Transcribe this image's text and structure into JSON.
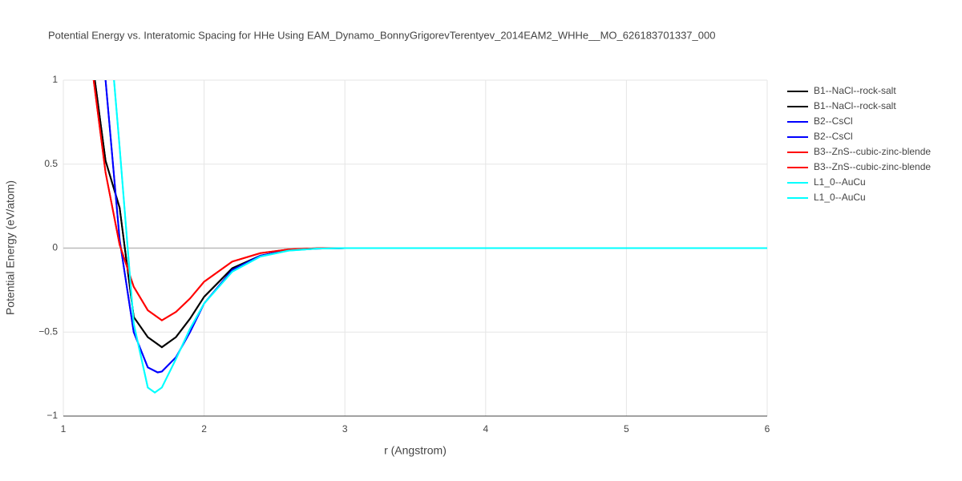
{
  "chart_data": {
    "type": "line",
    "title": "Potential Energy vs. Interatomic Spacing for HHe Using EAM_Dynamo_BonnyGrigorevTerentyev_2014EAM2_WHHe__MO_626183701337_000",
    "x_label": "r (Angstrom)",
    "y_label": "Potential Energy (eV/atom)",
    "xlim": [
      1,
      6
    ],
    "ylim": [
      -1,
      1
    ],
    "xticks": [
      1,
      2,
      3,
      4,
      5,
      6
    ],
    "yticks": [
      {
        "value": -1,
        "label": "−1"
      },
      {
        "value": -0.5,
        "label": "−0.5"
      },
      0,
      0.5,
      1
    ],
    "grid": true,
    "legend": "right",
    "series": [
      {
        "name": "B1--NaCl--rock-salt",
        "color": "#000000",
        "x": [
          1.2,
          1.3,
          1.4,
          1.5,
          1.6,
          1.7,
          1.8,
          1.9,
          2.0,
          2.2,
          2.4,
          2.6,
          2.8,
          3.0,
          4,
          5,
          6
        ],
        "values": [
          1.15,
          0.52,
          0.24,
          -0.41,
          -0.53,
          -0.59,
          -0.53,
          -0.42,
          -0.29,
          -0.12,
          -0.045,
          -0.012,
          -0.002,
          0,
          0,
          0,
          0
        ]
      },
      {
        "name": "B1--NaCl--rock-salt",
        "color": "#000000",
        "x": [
          1.2,
          1.3,
          1.4,
          1.5,
          1.6,
          1.7,
          1.8,
          1.9,
          2.0,
          2.2,
          2.4,
          2.6,
          2.8,
          3.0,
          4,
          5,
          6
        ],
        "values": [
          1.15,
          0.52,
          0.24,
          -0.41,
          -0.53,
          -0.59,
          -0.53,
          -0.42,
          -0.29,
          -0.12,
          -0.045,
          -0.012,
          -0.002,
          0,
          0,
          0,
          0
        ]
      },
      {
        "name": "B2--CsCl",
        "color": "#0000ff",
        "x": [
          1.28,
          1.3,
          1.4,
          1.5,
          1.6,
          1.67,
          1.7,
          1.8,
          1.9,
          2.0,
          2.2,
          2.4,
          2.6,
          2.8,
          3.0,
          4,
          5,
          6
        ],
        "values": [
          1.25,
          1.0,
          0.05,
          -0.5,
          -0.71,
          -0.74,
          -0.735,
          -0.65,
          -0.5,
          -0.33,
          -0.13,
          -0.045,
          -0.013,
          -0.003,
          0,
          0,
          0,
          0
        ]
      },
      {
        "name": "B2--CsCl",
        "color": "#0000ff",
        "x": [
          1.28,
          1.3,
          1.4,
          1.5,
          1.6,
          1.67,
          1.7,
          1.8,
          1.9,
          2.0,
          2.2,
          2.4,
          2.6,
          2.8,
          3.0,
          4,
          5,
          6
        ],
        "values": [
          1.25,
          1.0,
          0.05,
          -0.5,
          -0.71,
          -0.74,
          -0.735,
          -0.65,
          -0.5,
          -0.33,
          -0.13,
          -0.045,
          -0.013,
          -0.003,
          0,
          0,
          0,
          0
        ]
      },
      {
        "name": "B3--ZnS--cubic-zinc-blende",
        "color": "#ff0000",
        "x": [
          1.2,
          1.3,
          1.4,
          1.5,
          1.6,
          1.7,
          1.8,
          1.9,
          2.0,
          2.2,
          2.4,
          2.6,
          2.8,
          3.0,
          4,
          5,
          6
        ],
        "values": [
          1.1,
          0.45,
          0.02,
          -0.23,
          -0.37,
          -0.43,
          -0.38,
          -0.3,
          -0.2,
          -0.08,
          -0.03,
          -0.008,
          -0.001,
          0,
          0,
          0,
          0
        ]
      },
      {
        "name": "B3--ZnS--cubic-zinc-blende",
        "color": "#ff0000",
        "x": [
          1.2,
          1.3,
          1.4,
          1.5,
          1.6,
          1.7,
          1.8,
          1.9,
          2.0,
          2.2,
          2.4,
          2.6,
          2.8,
          3.0,
          4,
          5,
          6
        ],
        "values": [
          1.1,
          0.45,
          0.02,
          -0.23,
          -0.37,
          -0.43,
          -0.38,
          -0.3,
          -0.2,
          -0.08,
          -0.03,
          -0.008,
          -0.001,
          0,
          0,
          0,
          0
        ]
      },
      {
        "name": "L1_0--AuCu",
        "color": "#00ffff",
        "x": [
          1.34,
          1.36,
          1.4,
          1.5,
          1.6,
          1.65,
          1.7,
          1.8,
          1.9,
          2.0,
          2.2,
          2.4,
          2.6,
          2.8,
          3.0,
          4,
          5,
          6
        ],
        "values": [
          1.3,
          1.0,
          0.6,
          -0.45,
          -0.83,
          -0.86,
          -0.83,
          -0.66,
          -0.48,
          -0.33,
          -0.14,
          -0.05,
          -0.015,
          -0.003,
          0,
          0,
          0,
          0
        ]
      },
      {
        "name": "L1_0--AuCu",
        "color": "#00ffff",
        "x": [
          1.34,
          1.36,
          1.4,
          1.5,
          1.6,
          1.65,
          1.7,
          1.8,
          1.9,
          2.0,
          2.2,
          2.4,
          2.6,
          2.8,
          3.0,
          4,
          5,
          6
        ],
        "values": [
          1.3,
          1.0,
          0.6,
          -0.45,
          -0.83,
          -0.86,
          -0.83,
          -0.66,
          -0.48,
          -0.33,
          -0.14,
          -0.05,
          -0.015,
          -0.003,
          0,
          0,
          0,
          0
        ]
      }
    ]
  }
}
